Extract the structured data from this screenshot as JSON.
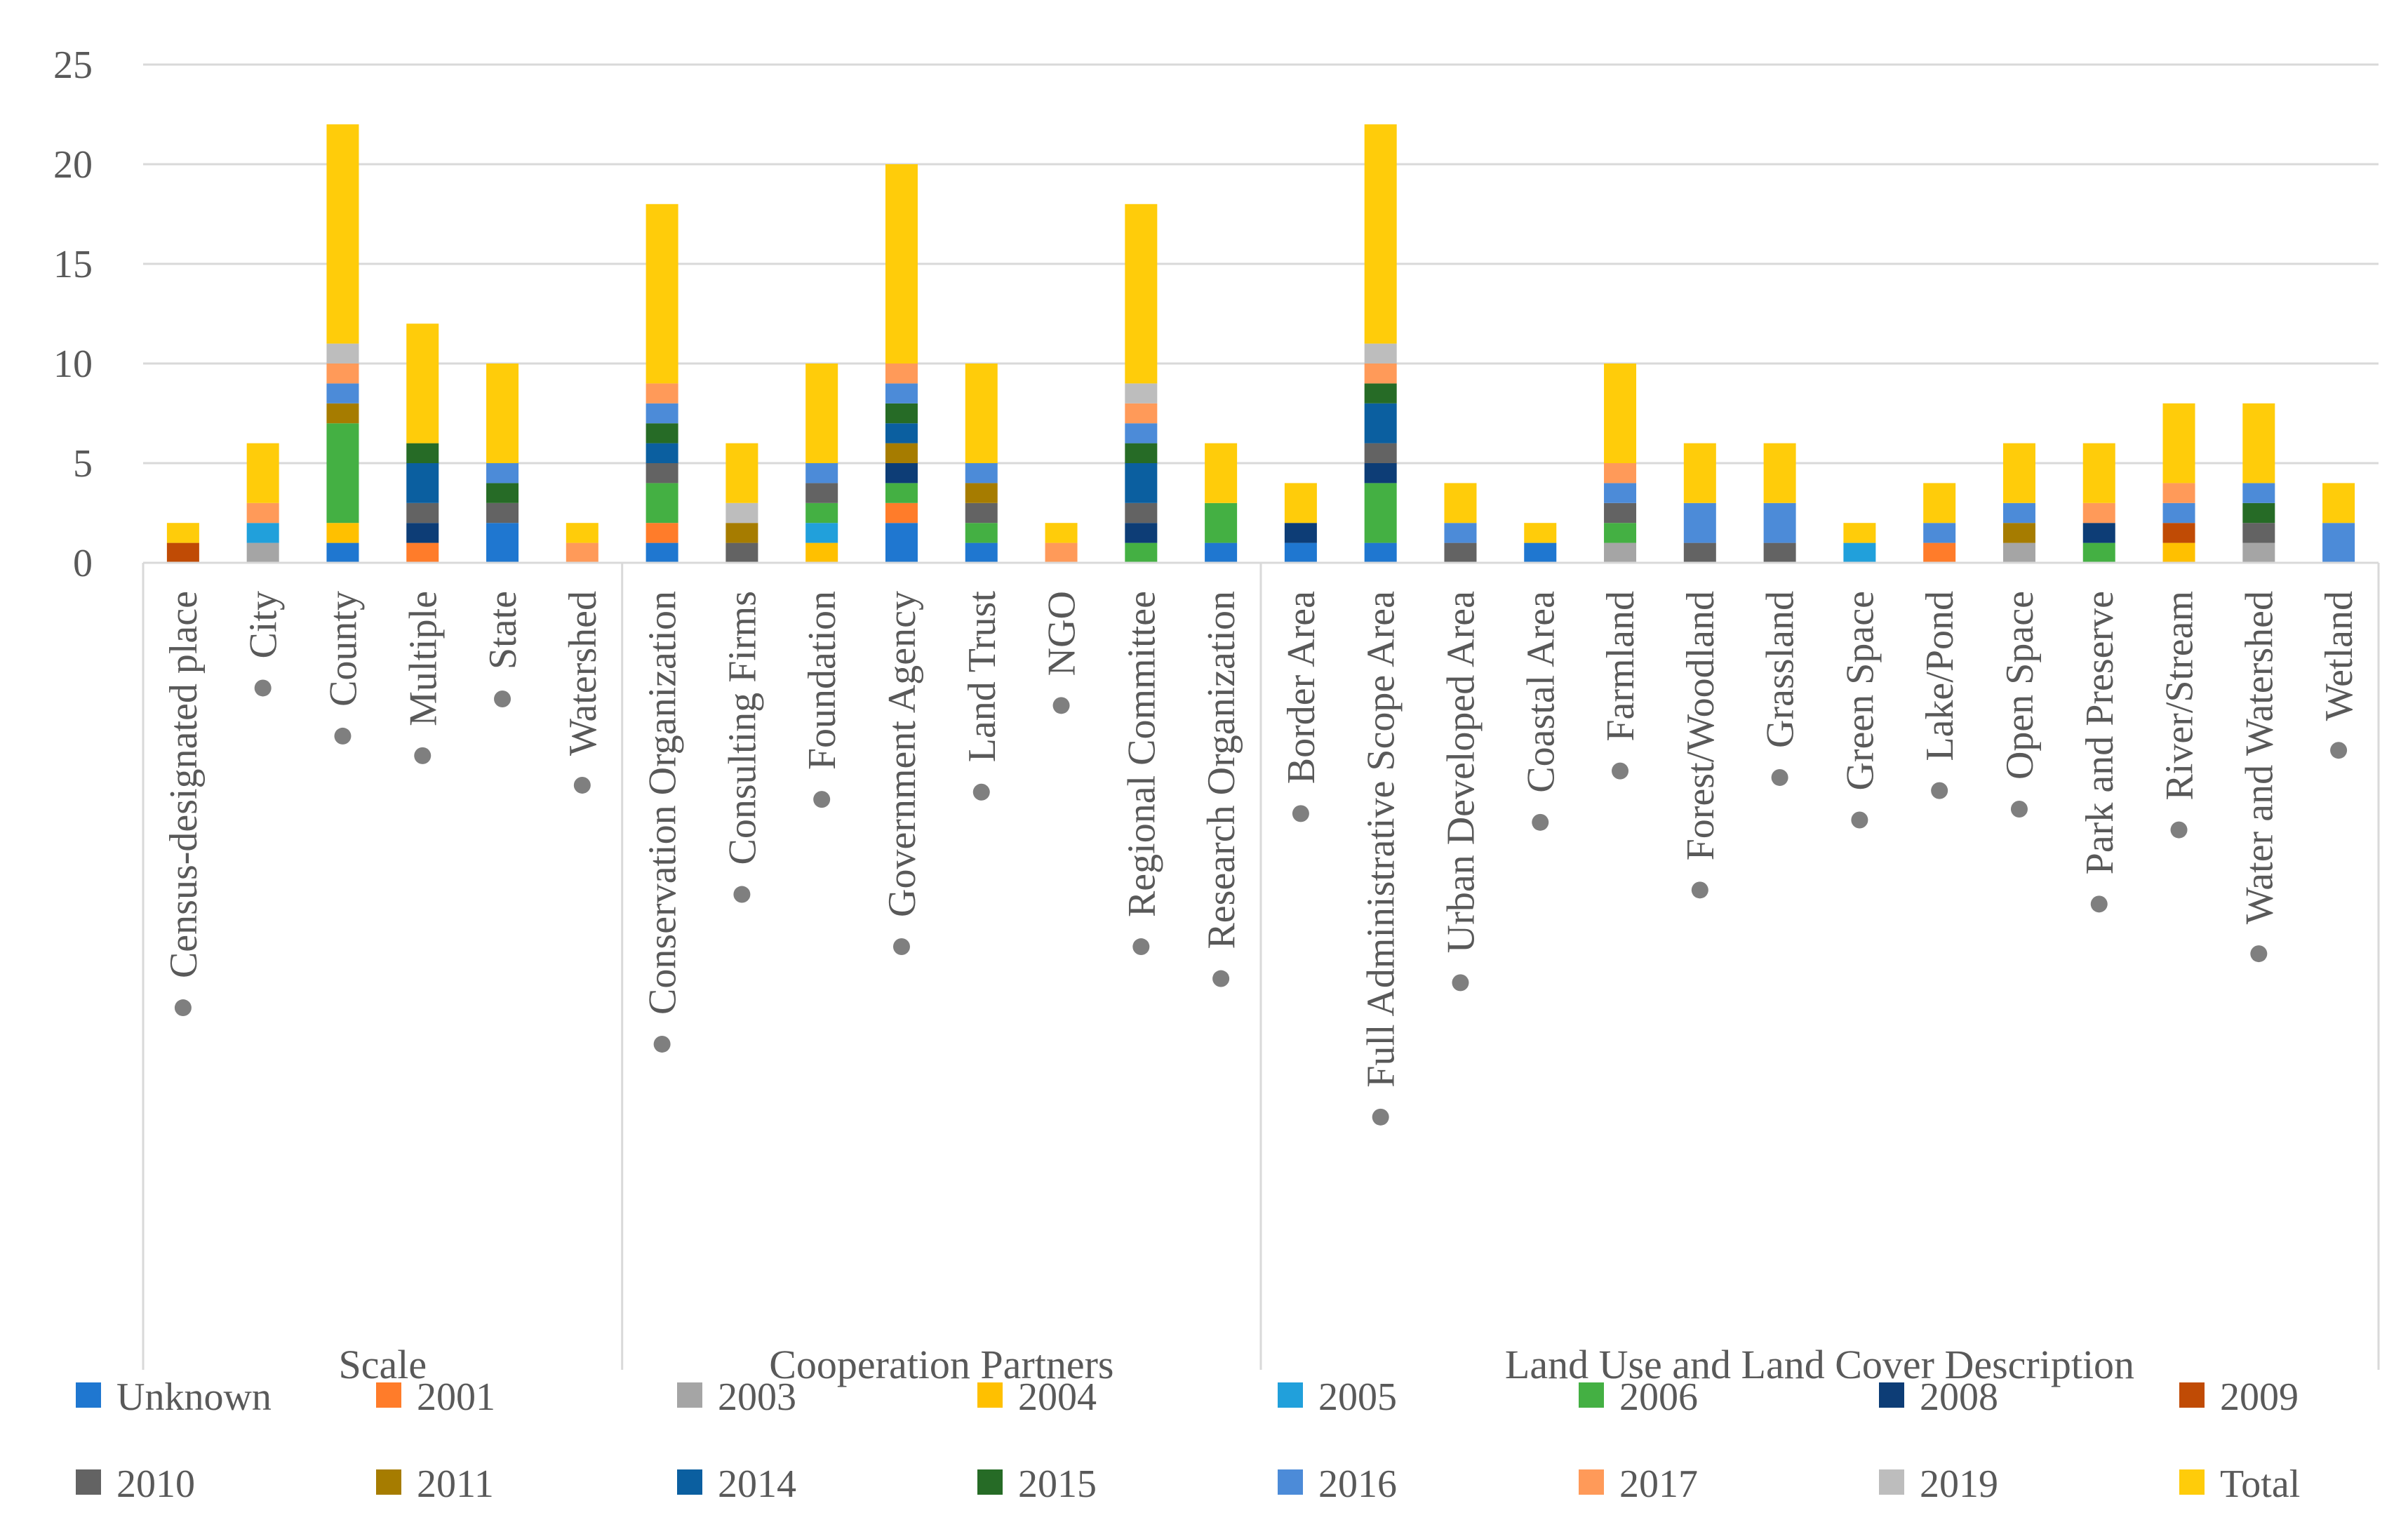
{
  "chart_data": {
    "type": "bar",
    "stacked": true,
    "title": "",
    "xlabel": "",
    "ylabel": "",
    "ylim": [
      0,
      25
    ],
    "yticks": [
      0,
      5,
      10,
      15,
      20,
      25
    ],
    "grid": true,
    "legend_position": "bottom",
    "groups": [
      {
        "label": "Scale",
        "categories": [
          "Census-designated place",
          "City",
          "County",
          "Multiple",
          "State",
          "Watershed"
        ]
      },
      {
        "label": "Cooperation Partners",
        "categories": [
          "Conservation Organization",
          "Consulting Firms",
          "Foundation",
          "Government Agency",
          "Land Trust",
          "NGO",
          "Regional Committee",
          "Research Organization"
        ]
      },
      {
        "label": "Land Use and Land Cover Description",
        "categories": [
          "Border Area",
          "Full Administrative Scope Area",
          "Urban Developed Area",
          "Coastal Area",
          "Farmland",
          "Forest/Woodland",
          "Grassland",
          "Green Space",
          "Lake/Pond",
          "Open Space",
          "Park and Preserve",
          "River/Stream",
          "Water and Watershed",
          "Wetland"
        ]
      }
    ],
    "categories": [
      "Census-designated place",
      "City",
      "County",
      "Multiple",
      "State",
      "Watershed",
      "Conservation Organization",
      "Consulting Firms",
      "Foundation",
      "Government Agency",
      "Land Trust",
      "NGO",
      "Regional Committee",
      "Research Organization",
      "Border Area",
      "Full Administrative Scope Area",
      "Urban Developed Area",
      "Coastal Area",
      "Farmland",
      "Forest/Woodland",
      "Grassland",
      "Green Space",
      "Lake/Pond",
      "Open Space",
      "Park and Preserve",
      "River/Stream",
      "Water and Watershed",
      "Wetland"
    ],
    "series": [
      {
        "name": "Unknown",
        "color": "#1F77D0",
        "values": [
          0,
          0,
          1,
          0,
          2,
          0,
          1,
          0,
          0,
          2,
          1,
          0,
          0,
          1,
          1,
          1,
          0,
          1,
          0,
          0,
          0,
          0,
          0,
          0,
          0,
          0,
          0,
          0
        ]
      },
      {
        "name": "2001",
        "color": "#FF7C2A",
        "values": [
          0,
          0,
          0,
          1,
          0,
          0,
          1,
          0,
          0,
          1,
          0,
          0,
          0,
          0,
          0,
          0,
          0,
          0,
          0,
          0,
          0,
          0,
          1,
          0,
          0,
          0,
          0,
          0
        ]
      },
      {
        "name": "2003",
        "color": "#A5A5A5",
        "values": [
          0,
          1,
          0,
          0,
          0,
          0,
          0,
          0,
          0,
          0,
          0,
          0,
          0,
          0,
          0,
          0,
          0,
          0,
          1,
          0,
          0,
          0,
          0,
          1,
          0,
          0,
          1,
          0
        ]
      },
      {
        "name": "2004",
        "color": "#FFC000",
        "values": [
          0,
          0,
          1,
          0,
          0,
          0,
          0,
          0,
          1,
          0,
          0,
          0,
          0,
          0,
          0,
          0,
          0,
          0,
          0,
          0,
          0,
          0,
          0,
          0,
          0,
          1,
          0,
          0
        ]
      },
      {
        "name": "2005",
        "color": "#21A0DB",
        "values": [
          0,
          1,
          0,
          0,
          0,
          0,
          0,
          0,
          1,
          0,
          0,
          0,
          0,
          0,
          0,
          0,
          0,
          0,
          0,
          0,
          0,
          1,
          0,
          0,
          0,
          0,
          0,
          0
        ]
      },
      {
        "name": "2006",
        "color": "#44B043",
        "values": [
          0,
          0,
          5,
          0,
          0,
          0,
          2,
          0,
          1,
          1,
          1,
          0,
          1,
          2,
          0,
          3,
          0,
          0,
          1,
          0,
          0,
          0,
          0,
          0,
          1,
          0,
          0,
          0
        ]
      },
      {
        "name": "2008",
        "color": "#0D3D76",
        "values": [
          0,
          0,
          0,
          1,
          0,
          0,
          0,
          0,
          0,
          1,
          0,
          0,
          1,
          0,
          1,
          1,
          0,
          0,
          0,
          0,
          0,
          0,
          0,
          0,
          1,
          0,
          0,
          0
        ]
      },
      {
        "name": "2009",
        "color": "#C04B05",
        "values": [
          1,
          0,
          0,
          0,
          0,
          0,
          0,
          0,
          0,
          0,
          0,
          0,
          0,
          0,
          0,
          0,
          0,
          0,
          0,
          0,
          0,
          0,
          0,
          0,
          0,
          1,
          0,
          0
        ]
      },
      {
        "name": "2010",
        "color": "#636363",
        "values": [
          0,
          0,
          0,
          1,
          1,
          0,
          1,
          1,
          1,
          0,
          1,
          0,
          1,
          0,
          0,
          1,
          1,
          0,
          1,
          1,
          1,
          0,
          0,
          0,
          0,
          0,
          1,
          0
        ]
      },
      {
        "name": "2011",
        "color": "#A67C00",
        "values": [
          0,
          0,
          1,
          0,
          0,
          0,
          0,
          1,
          0,
          1,
          1,
          0,
          0,
          0,
          0,
          0,
          0,
          0,
          0,
          0,
          0,
          0,
          0,
          1,
          0,
          0,
          0,
          0
        ]
      },
      {
        "name": "2014",
        "color": "#0B5FA0",
        "values": [
          0,
          0,
          0,
          2,
          0,
          0,
          1,
          0,
          0,
          1,
          0,
          0,
          2,
          0,
          0,
          2,
          0,
          0,
          0,
          0,
          0,
          0,
          0,
          0,
          0,
          0,
          0,
          0
        ]
      },
      {
        "name": "2015",
        "color": "#266B26",
        "values": [
          0,
          0,
          0,
          1,
          1,
          0,
          1,
          0,
          0,
          1,
          0,
          0,
          1,
          0,
          0,
          1,
          0,
          0,
          0,
          0,
          0,
          0,
          0,
          0,
          0,
          0,
          1,
          0
        ]
      },
      {
        "name": "2016",
        "color": "#4C8BD8",
        "values": [
          0,
          0,
          1,
          0,
          1,
          0,
          1,
          0,
          1,
          1,
          1,
          0,
          1,
          0,
          0,
          0,
          1,
          0,
          1,
          2,
          2,
          0,
          1,
          1,
          0,
          1,
          1,
          2
        ]
      },
      {
        "name": "2017",
        "color": "#FF9A59",
        "values": [
          0,
          1,
          1,
          0,
          0,
          1,
          1,
          0,
          0,
          1,
          0,
          1,
          1,
          0,
          0,
          1,
          0,
          0,
          1,
          0,
          0,
          0,
          0,
          0,
          1,
          1,
          0,
          0
        ]
      },
      {
        "name": "2019",
        "color": "#BDBDBD",
        "values": [
          0,
          0,
          1,
          0,
          0,
          0,
          0,
          1,
          0,
          0,
          0,
          0,
          1,
          0,
          0,
          1,
          0,
          0,
          0,
          0,
          0,
          0,
          0,
          0,
          0,
          0,
          0,
          0
        ]
      },
      {
        "name": "Total",
        "color": "#FFCC0A",
        "values": [
          1,
          3,
          11,
          6,
          5,
          1,
          9,
          3,
          5,
          10,
          5,
          1,
          9,
          3,
          2,
          11,
          2,
          1,
          5,
          3,
          3,
          1,
          2,
          3,
          3,
          4,
          4,
          2
        ]
      }
    ]
  }
}
